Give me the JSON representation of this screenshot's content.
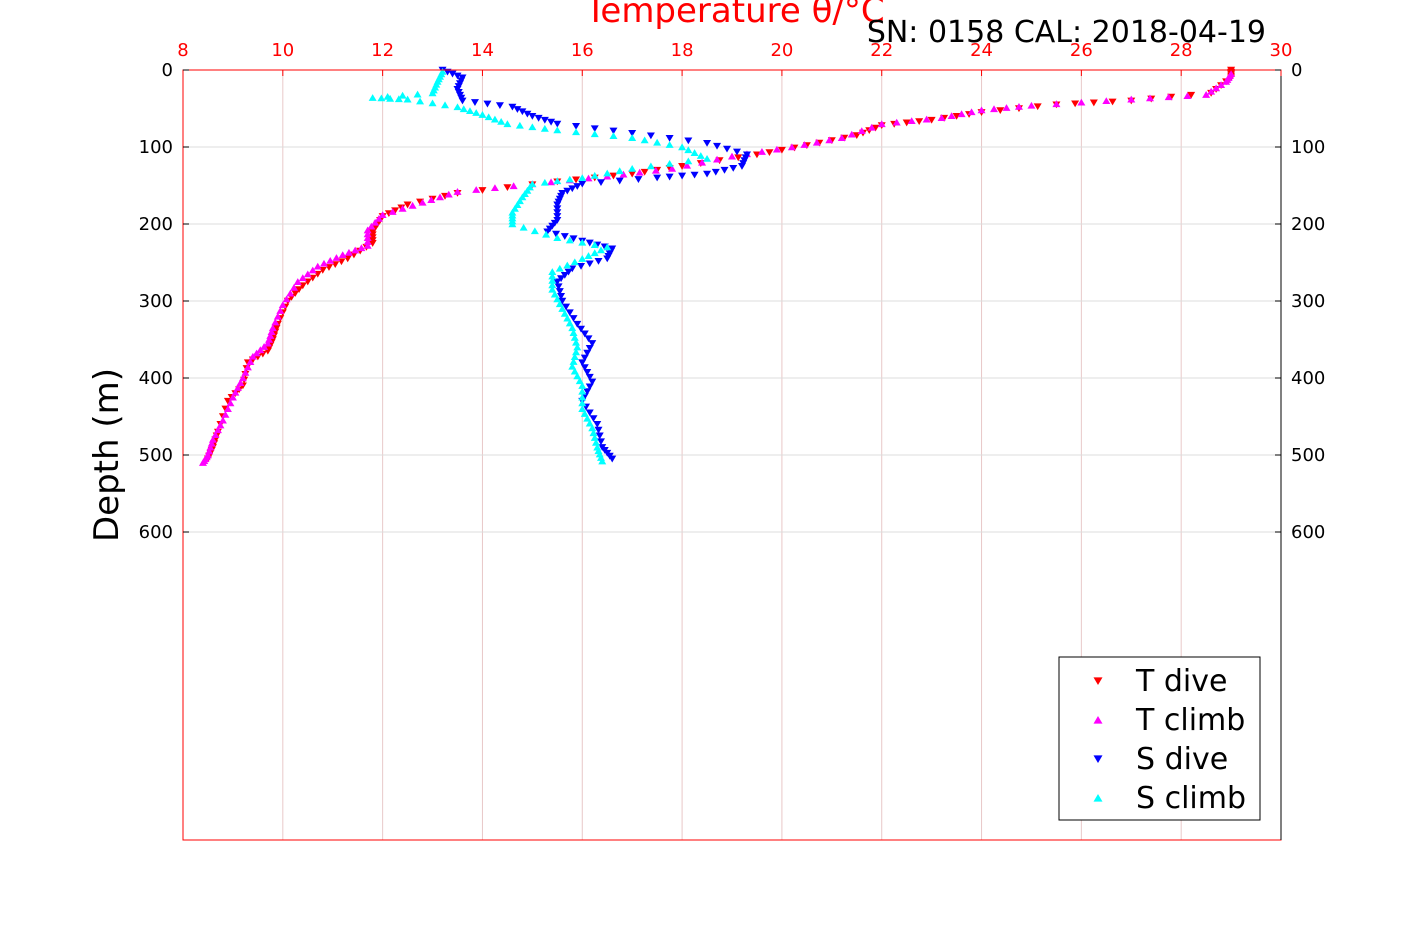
{
  "chart_data": {
    "type": "scatter",
    "title": "Temperature θ/°C",
    "subtitle": "SN: 0158  CAL: 2018-04-19",
    "xlabel": "Temperature θ/°C",
    "ylabel": "Depth (m)",
    "xlim": [
      8,
      30
    ],
    "ylim": [
      0,
      1000
    ],
    "y_reversed": true,
    "grid": true,
    "legend_position": "bottom-right",
    "x_ticks": [
      "8",
      "10",
      "12",
      "14",
      "16",
      "18",
      "20",
      "22",
      "24",
      "26",
      "28",
      "30"
    ],
    "y_ticks": [
      "0",
      "100",
      "200",
      "300",
      "400",
      "500",
      "600"
    ],
    "colors": {
      "axis": "#ff0000",
      "grid": "#e8c8c8",
      "t_dive": "#ff0000",
      "t_climb": "#ff00ff",
      "s_dive": "#0000ff",
      "s_climb": "#00ffff"
    },
    "series": [
      {
        "name": "T dive",
        "marker": "triangle-down",
        "color": "#ff0000",
        "points": [
          [
            29.0,
            0
          ],
          [
            29.0,
            10
          ],
          [
            28.6,
            30
          ],
          [
            27.0,
            40
          ],
          [
            25.5,
            45
          ],
          [
            24.0,
            55
          ],
          [
            23.0,
            65
          ],
          [
            22.0,
            72
          ],
          [
            21.5,
            85
          ],
          [
            20.5,
            98
          ],
          [
            19.5,
            110
          ],
          [
            18.0,
            125
          ],
          [
            17.0,
            135
          ],
          [
            15.5,
            145
          ],
          [
            13.5,
            160
          ],
          [
            12.5,
            175
          ],
          [
            12.0,
            190
          ],
          [
            11.8,
            210
          ],
          [
            11.8,
            225
          ],
          [
            11.3,
            245
          ],
          [
            10.8,
            260
          ],
          [
            10.4,
            280
          ],
          [
            10.1,
            300
          ],
          [
            9.9,
            330
          ],
          [
            9.8,
            350
          ],
          [
            9.7,
            365
          ],
          [
            9.3,
            380
          ],
          [
            9.2,
            410
          ],
          [
            8.9,
            430
          ],
          [
            8.7,
            470
          ],
          [
            8.6,
            490
          ],
          [
            8.5,
            505
          ]
        ]
      },
      {
        "name": "T climb",
        "marker": "triangle-up",
        "color": "#ff00ff",
        "points": [
          [
            29.0,
            5
          ],
          [
            28.9,
            15
          ],
          [
            28.5,
            32
          ],
          [
            27.0,
            38
          ],
          [
            25.0,
            46
          ],
          [
            24.0,
            52
          ],
          [
            23.2,
            62
          ],
          [
            22.0,
            70
          ],
          [
            21.2,
            88
          ],
          [
            20.2,
            100
          ],
          [
            19.0,
            112
          ],
          [
            17.8,
            128
          ],
          [
            16.5,
            138
          ],
          [
            15.0,
            148
          ],
          [
            13.5,
            158
          ],
          [
            12.8,
            172
          ],
          [
            12.0,
            188
          ],
          [
            11.7,
            208
          ],
          [
            11.7,
            228
          ],
          [
            11.2,
            240
          ],
          [
            10.7,
            255
          ],
          [
            10.3,
            275
          ],
          [
            10.0,
            305
          ],
          [
            9.8,
            335
          ],
          [
            9.7,
            355
          ],
          [
            9.4,
            372
          ],
          [
            9.2,
            400
          ],
          [
            9.0,
            425
          ],
          [
            8.8,
            455
          ],
          [
            8.6,
            480
          ],
          [
            8.5,
            500
          ],
          [
            8.4,
            510
          ]
        ]
      },
      {
        "name": "S dive",
        "marker": "triangle-down",
        "color": "#0000ff",
        "points": [
          [
            13.2,
            0
          ],
          [
            13.6,
            10
          ],
          [
            13.5,
            25
          ],
          [
            13.6,
            40
          ],
          [
            14.6,
            48
          ],
          [
            15.0,
            60
          ],
          [
            15.5,
            70
          ],
          [
            17.0,
            82
          ],
          [
            18.5,
            95
          ],
          [
            19.3,
            110
          ],
          [
            19.2,
            125
          ],
          [
            18.5,
            135
          ],
          [
            17.5,
            140
          ],
          [
            16.0,
            148
          ],
          [
            15.6,
            160
          ],
          [
            15.5,
            175
          ],
          [
            15.5,
            195
          ],
          [
            15.3,
            210
          ],
          [
            16.0,
            222
          ],
          [
            16.6,
            232
          ],
          [
            16.5,
            245
          ],
          [
            15.8,
            258
          ],
          [
            15.5,
            275
          ],
          [
            15.6,
            300
          ],
          [
            15.9,
            330
          ],
          [
            16.2,
            355
          ],
          [
            16.0,
            380
          ],
          [
            16.2,
            405
          ],
          [
            16.0,
            430
          ],
          [
            16.3,
            460
          ],
          [
            16.4,
            490
          ],
          [
            16.6,
            505
          ]
        ]
      },
      {
        "name": "S climb",
        "marker": "triangle-up",
        "color": "#00ffff",
        "points": [
          [
            13.2,
            2
          ],
          [
            13.1,
            15
          ],
          [
            13.0,
            30
          ],
          [
            11.8,
            36
          ],
          [
            12.5,
            38
          ],
          [
            13.5,
            48
          ],
          [
            14.0,
            58
          ],
          [
            14.5,
            70
          ],
          [
            15.5,
            78
          ],
          [
            17.0,
            88
          ],
          [
            18.0,
            100
          ],
          [
            18.5,
            115
          ],
          [
            17.0,
            128
          ],
          [
            16.0,
            140
          ],
          [
            15.0,
            148
          ],
          [
            14.8,
            165
          ],
          [
            14.6,
            185
          ],
          [
            14.6,
            200
          ],
          [
            15.5,
            218
          ],
          [
            16.5,
            230
          ],
          [
            16.0,
            245
          ],
          [
            15.4,
            262
          ],
          [
            15.4,
            285
          ],
          [
            15.6,
            310
          ],
          [
            15.8,
            335
          ],
          [
            15.9,
            360
          ],
          [
            15.8,
            385
          ],
          [
            16.0,
            410
          ],
          [
            16.0,
            440
          ],
          [
            16.2,
            465
          ],
          [
            16.3,
            490
          ],
          [
            16.4,
            508
          ]
        ]
      }
    ]
  }
}
